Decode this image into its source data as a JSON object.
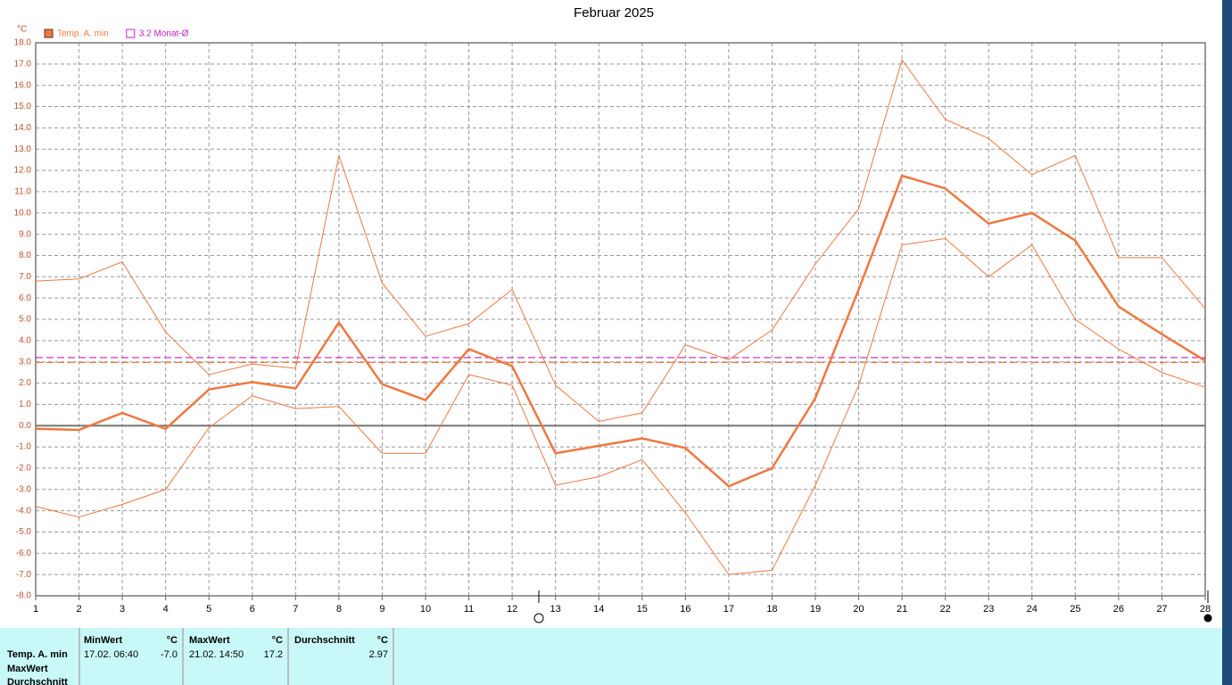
{
  "chart_data": {
    "type": "line",
    "title": "Februar 2025",
    "y_unit": "°C",
    "x": [
      1,
      2,
      3,
      4,
      5,
      6,
      7,
      8,
      9,
      10,
      11,
      12,
      13,
      14,
      15,
      16,
      17,
      18,
      19,
      20,
      21,
      22,
      23,
      24,
      25,
      26,
      27,
      28
    ],
    "xlim": [
      1,
      28
    ],
    "xticks": [
      1,
      2,
      3,
      4,
      5,
      6,
      7,
      8,
      9,
      10,
      11,
      12,
      13,
      14,
      15,
      16,
      17,
      18,
      19,
      20,
      21,
      22,
      23,
      24,
      25,
      26,
      27,
      28
    ],
    "ylim": [
      -8,
      18
    ],
    "yticks": [
      {
        "value": 18,
        "label": "18.0"
      },
      {
        "value": 17,
        "label": "17.0"
      },
      {
        "value": 16,
        "label": "16.0"
      },
      {
        "value": 15,
        "label": "15.0"
      },
      {
        "value": 14,
        "label": "14.0"
      },
      {
        "value": 13,
        "label": "13.0"
      },
      {
        "value": 12,
        "label": "12.0"
      },
      {
        "value": 11,
        "label": "11.0"
      },
      {
        "value": 10,
        "label": "10.0"
      },
      {
        "value": 9,
        "label": "9.0"
      },
      {
        "value": 8,
        "label": "8.0"
      },
      {
        "value": 7,
        "label": "7.0"
      },
      {
        "value": 6,
        "label": "6.0"
      },
      {
        "value": 5,
        "label": "5.0"
      },
      {
        "value": 4,
        "label": "4.0"
      },
      {
        "value": 3,
        "label": "3.0"
      },
      {
        "value": 2,
        "label": "2.0"
      },
      {
        "value": 1,
        "label": "1.0"
      },
      {
        "value": 0,
        "label": "0.0"
      },
      {
        "value": -1,
        "label": "-1.0"
      },
      {
        "value": -2,
        "label": "-2.0"
      },
      {
        "value": -3,
        "label": "-3.0"
      },
      {
        "value": -4,
        "label": "-4.0"
      },
      {
        "value": -5,
        "label": "-5.0"
      },
      {
        "value": -6,
        "label": "-6.0"
      },
      {
        "value": -7,
        "label": "-7.0"
      },
      {
        "value": -8,
        "label": "-8.0"
      }
    ],
    "grid": true,
    "series": [
      {
        "name": "Temp. A. min",
        "color": "#f07840",
        "width": 2.5,
        "values": [
          -0.15,
          -0.2,
          0.6,
          -0.15,
          1.7,
          2.05,
          1.75,
          4.85,
          1.95,
          1.2,
          3.6,
          2.8,
          -1.3,
          -0.95,
          -0.6,
          -1.05,
          -2.85,
          -2.0,
          1.3,
          6.4,
          11.75,
          11.15,
          9.5,
          10.0,
          8.7,
          5.6,
          4.3,
          3.05
        ]
      },
      {
        "color": "#f07840",
        "width": 1,
        "values": [
          6.8,
          6.9,
          7.7,
          4.4,
          2.4,
          2.9,
          2.7,
          12.7,
          6.7,
          4.2,
          4.8,
          6.4,
          1.9,
          0.2,
          0.6,
          3.8,
          3.1,
          4.5,
          7.6,
          10.2,
          17.2,
          14.4,
          13.5,
          11.8,
          12.7,
          7.9,
          7.9,
          5.5
        ]
      },
      {
        "color": "#f07840",
        "width": 1,
        "values": [
          -3.8,
          -4.3,
          -3.7,
          -3.0,
          -0.1,
          1.4,
          0.8,
          0.9,
          -1.3,
          -1.3,
          2.4,
          1.9,
          -2.8,
          -2.4,
          -1.6,
          -4.1,
          -7.0,
          -6.8,
          -2.8,
          1.9,
          8.5,
          8.8,
          7.0,
          8.5,
          5.0,
          3.6,
          2.5,
          1.8
        ]
      }
    ],
    "reference_lines": [
      {
        "value": 3.2,
        "label": "3.2 Monat-Ø",
        "color": "#c020c0"
      },
      {
        "value": 2.97,
        "color": "#f07840"
      }
    ]
  },
  "stats_table": {
    "row_labels": [
      "Temp. A. min",
      "MaxWert",
      "Durchschnitt"
    ],
    "headers": [
      [
        "MinWert",
        "°C"
      ],
      [
        "MaxWert",
        "°C"
      ],
      [
        "Durchschnitt",
        "°C"
      ]
    ],
    "cells": [
      [
        "17.02.  06:40",
        "-7.0"
      ],
      [
        "21.02.  14:50",
        "17.2"
      ],
      [
        "",
        "2.97"
      ]
    ]
  }
}
